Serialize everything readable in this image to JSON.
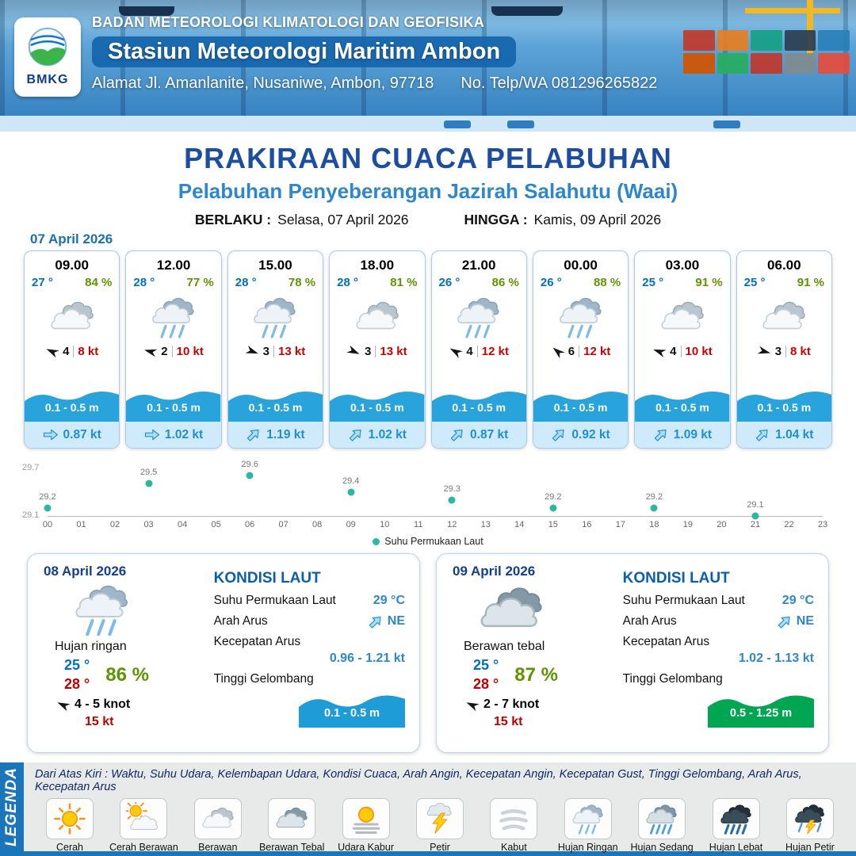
{
  "header": {
    "agency": "BADAN METEOROLOGI KLIMATOLOGI DAN GEOFISIKA",
    "station": "Stasiun Meteorologi Maritim Ambon",
    "address": "Alamat Jl. Amanlanite, Nusaniwe, Ambon, 97718",
    "phone": "No. Telp/WA  081296265822",
    "logo_text": "BMKG"
  },
  "title": {
    "main": "PRAKIRAAN CUACA PELABUHAN",
    "subtitle": "Pelabuhan Penyeberangan Jazirah Salahutu (Waai)",
    "valid_from_label": "BERLAKU :",
    "valid_from": "Selasa, 07 April 2026",
    "valid_to_label": "HINGGA :",
    "valid_to": "Kamis, 09 April 2026"
  },
  "icons": {
    "wind": "wind-arrow",
    "current": "current-arrow"
  },
  "forecast": {
    "date": "07 April 2026",
    "cards": [
      {
        "time": "09.00",
        "temp": "27 °",
        "rh": "84 %",
        "icon": "berawan",
        "wind_deg": 205,
        "wind_val": "4",
        "wind_kt": "8 kt",
        "wave": "0.1 - 0.5 m",
        "cur_deg": 0,
        "cur": "0.87 kt"
      },
      {
        "time": "12.00",
        "temp": "28 °",
        "rh": "77 %",
        "icon": "hujan-ringan",
        "wind_deg": 195,
        "wind_val": "2",
        "wind_kt": "10 kt",
        "wave": "0.1 - 0.5 m",
        "cur_deg": 0,
        "cur": "1.02 kt"
      },
      {
        "time": "15.00",
        "temp": "28 °",
        "rh": "78 %",
        "icon": "hujan-ringan",
        "wind_deg": 20,
        "wind_val": "3",
        "wind_kt": "13 kt",
        "wave": "0.1 - 0.5 m",
        "cur_deg": -45,
        "cur": "1.19 kt"
      },
      {
        "time": "18.00",
        "temp": "28 °",
        "rh": "81 %",
        "icon": "berawan",
        "wind_deg": 25,
        "wind_val": "3",
        "wind_kt": "13 kt",
        "wave": "0.1 - 0.5 m",
        "cur_deg": -45,
        "cur": "1.02 kt"
      },
      {
        "time": "21.00",
        "temp": "26 °",
        "rh": "86 %",
        "icon": "hujan-ringan",
        "wind_deg": 210,
        "wind_val": "4",
        "wind_kt": "12 kt",
        "wave": "0.1 - 0.5 m",
        "cur_deg": -45,
        "cur": "0.87 kt"
      },
      {
        "time": "00.00",
        "temp": "26 °",
        "rh": "88 %",
        "icon": "hujan-ringan",
        "wind_deg": 220,
        "wind_val": "6",
        "wind_kt": "12 kt",
        "wave": "0.1 - 0.5 m",
        "cur_deg": -45,
        "cur": "0.92 kt"
      },
      {
        "time": "03.00",
        "temp": "25 °",
        "rh": "91 %",
        "icon": "berawan",
        "wind_deg": 200,
        "wind_val": "4",
        "wind_kt": "10 kt",
        "wave": "0.1 - 0.5 m",
        "cur_deg": -45,
        "cur": "1.09 kt"
      },
      {
        "time": "06.00",
        "temp": "25 °",
        "rh": "91 %",
        "icon": "berawan",
        "wind_deg": 15,
        "wind_val": "3",
        "wind_kt": "8 kt",
        "wave": "0.1 - 0.5 m",
        "cur_deg": -45,
        "cur": "1.04 kt"
      }
    ]
  },
  "chart_data": {
    "type": "scatter",
    "title": "",
    "xlabel": "",
    "ylabel": "",
    "legend": "Suhu Permukaan Laut",
    "legend_position": "bottom-center",
    "grid": false,
    "point_color": "#2cb7a2",
    "ylim": [
      29.1,
      29.7
    ],
    "y_axis_labels": [
      "29.7",
      "29.1"
    ],
    "x_ticks": [
      "00",
      "01",
      "02",
      "03",
      "04",
      "05",
      "06",
      "07",
      "08",
      "09",
      "10",
      "11",
      "12",
      "13",
      "14",
      "15",
      "16",
      "17",
      "18",
      "19",
      "20",
      "21",
      "22",
      "23"
    ],
    "points": [
      {
        "hour": 0,
        "value": 29.2
      },
      {
        "hour": 3,
        "value": 29.5
      },
      {
        "hour": 6,
        "value": 29.6
      },
      {
        "hour": 9,
        "value": 29.4
      },
      {
        "hour": 12,
        "value": 29.3
      },
      {
        "hour": 15,
        "value": 29.2
      },
      {
        "hour": 18,
        "value": 29.2
      },
      {
        "hour": 21,
        "value": 29.1
      }
    ]
  },
  "sea_labels": {
    "heading": "KONDISI LAUT",
    "sst": "Suhu Permukaan Laut",
    "arus": "Arah Arus",
    "kec": "Kecepatan Arus",
    "gel": "Tinggi Gelombang"
  },
  "daily": [
    {
      "date": "08 April 2026",
      "icon": "hujan-ringan",
      "condition": "Hujan ringan",
      "tmin": "25 °",
      "tmax": "28 °",
      "rh": "86 %",
      "wind_deg": 205,
      "wind": "4  - 5 knot",
      "gust": "15 kt",
      "sea": {
        "sst": "29 °C",
        "dir": "NE",
        "dir_deg": -45,
        "kec": "0.96 - 1.21 kt",
        "gel": "0.1 - 0.5 m",
        "gel_color": "#1e9cd7"
      }
    },
    {
      "date": "09 April 2026",
      "icon": "berawan-tebal",
      "condition": "Berawan tebal",
      "tmin": "25 °",
      "tmax": "28 °",
      "rh": "87 %",
      "wind_deg": 205,
      "wind": "2  - 7 knot",
      "gust": "15 kt",
      "sea": {
        "sst": "29 °C",
        "dir": "NE",
        "dir_deg": -45,
        "kec": "1.02 - 1.13 kt",
        "gel": "0.5 - 1.25 m",
        "gel_color": "#00a651"
      }
    }
  ],
  "legend": {
    "band": "LEGENDA",
    "note": "Dari Atas Kiri : Waktu, Suhu Udara, Kelembapan Udara, Kondisi Cuaca, Arah Angin, Kecepatan Angin, Kecepatan Gust, Tinggi Gelombang, Arah Arus, Kecepatan Arus",
    "items": [
      {
        "label": "Cerah",
        "icon": "cerah"
      },
      {
        "label": "Cerah Berawan",
        "icon": "cerah-berawan"
      },
      {
        "label": "Berawan",
        "icon": "berawan"
      },
      {
        "label": "Berawan Tebal",
        "icon": "berawan-tebal"
      },
      {
        "label": "Udara Kabur",
        "icon": "udara-kabur"
      },
      {
        "label": "Petir",
        "icon": "petir"
      },
      {
        "label": "Kabut",
        "icon": "kabut"
      },
      {
        "label": "Hujan Ringan",
        "icon": "hujan-ringan"
      },
      {
        "label": "Hujan Sedang",
        "icon": "hujan-sedang"
      },
      {
        "label": "Hujan Lebat",
        "icon": "hujan-lebat"
      },
      {
        "label": "Hujan Petir",
        "icon": "hujan-petir"
      }
    ]
  }
}
